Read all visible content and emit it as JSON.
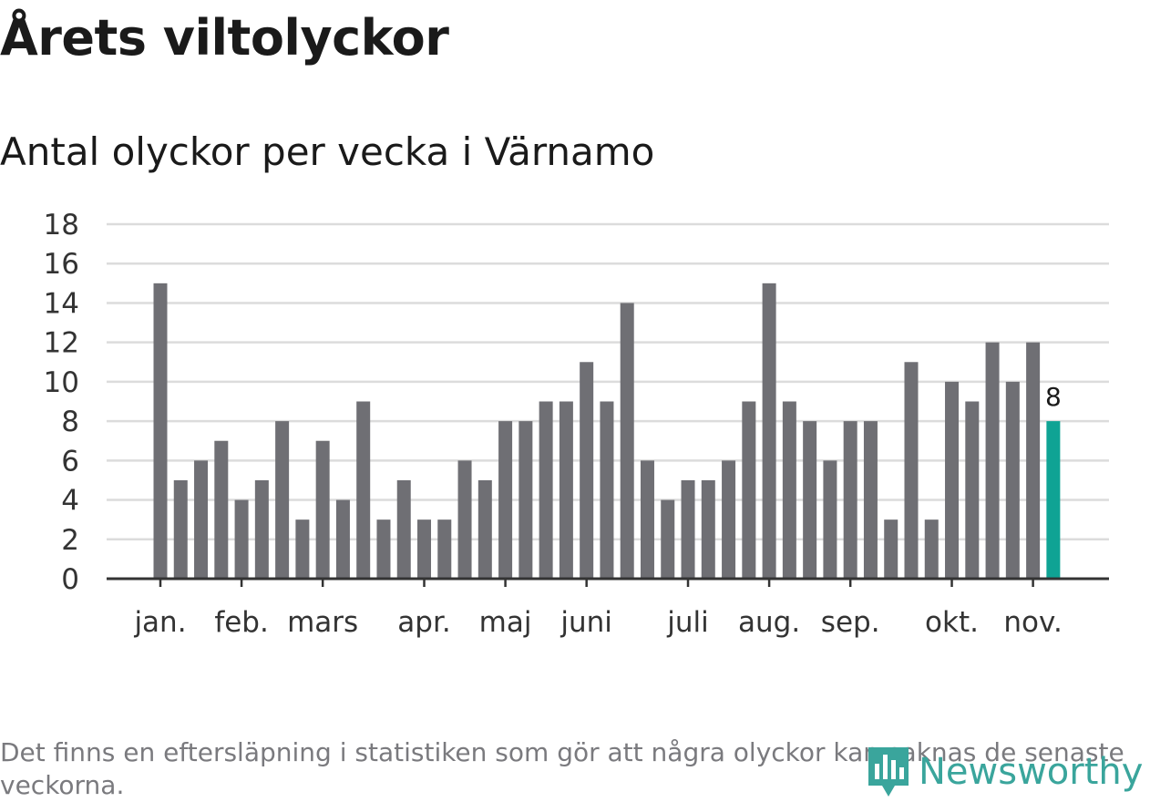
{
  "header": {
    "title": "Årets viltolyckor",
    "subtitle": "Antal olyckor per vecka i Värnamo"
  },
  "footer": {
    "note": "Det finns en eftersläpning i statistiken som gör att några olyckor kan saknas de senaste veckorna.",
    "brand": "Newsworthy"
  },
  "colors": {
    "bar": "#6f6f74",
    "highlight": "#0fa394",
    "grid": "#dcdcdc",
    "axis": "#333333",
    "brand": "#3aa59c"
  },
  "chart_data": {
    "type": "bar",
    "title": "Årets viltolyckor",
    "subtitle": "Antal olyckor per vecka i Värnamo",
    "xlabel": "",
    "ylabel": "",
    "ylim": [
      0,
      18
    ],
    "yticks": [
      0,
      2,
      4,
      6,
      8,
      10,
      12,
      14,
      16,
      18
    ],
    "grid": true,
    "values": [
      15,
      5,
      6,
      7,
      4,
      5,
      8,
      3,
      7,
      4,
      9,
      3,
      5,
      3,
      3,
      6,
      5,
      8,
      8,
      9,
      9,
      11,
      9,
      14,
      6,
      4,
      5,
      5,
      6,
      9,
      15,
      9,
      8,
      6,
      8,
      8,
      3,
      11,
      3,
      10,
      9,
      12,
      10,
      12,
      8
    ],
    "highlight_index": 44,
    "highlight_label": "8",
    "month_labels": [
      {
        "label": "jan.",
        "week": 1
      },
      {
        "label": "feb.",
        "week": 5
      },
      {
        "label": "mars",
        "week": 9
      },
      {
        "label": "apr.",
        "week": 14
      },
      {
        "label": "maj",
        "week": 18
      },
      {
        "label": "juni",
        "week": 22
      },
      {
        "label": "juli",
        "week": 27
      },
      {
        "label": "aug.",
        "week": 31
      },
      {
        "label": "sep.",
        "week": 35
      },
      {
        "label": "okt.",
        "week": 40
      },
      {
        "label": "nov.",
        "week": 44
      }
    ]
  }
}
